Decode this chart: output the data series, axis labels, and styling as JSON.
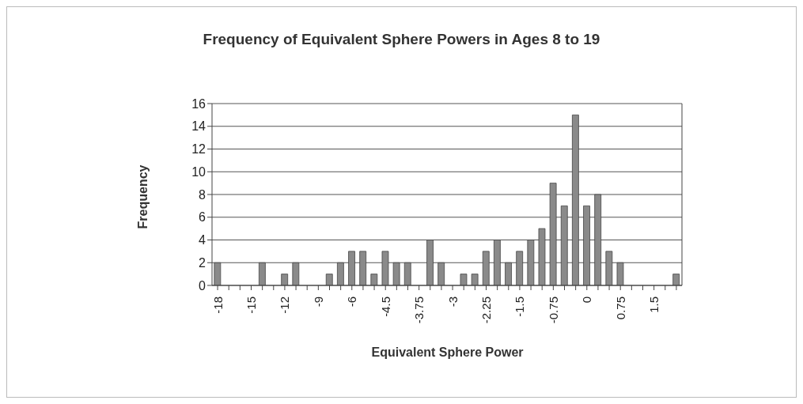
{
  "chart_data": {
    "type": "bar",
    "title": "Frequency of Equivalent Sphere Powers in Ages 8 to 19",
    "xlabel": "Equivalent Sphere Power",
    "ylabel": "Frequency",
    "categories": [
      "-18",
      null,
      null,
      "-15",
      null,
      null,
      "-12",
      null,
      null,
      "-9",
      null,
      null,
      "-6",
      null,
      null,
      "-4.5",
      null,
      null,
      "-3.75",
      null,
      null,
      "-3",
      null,
      null,
      "-2.25",
      null,
      null,
      "-1.5",
      null,
      null,
      "-0.75",
      null,
      null,
      "0",
      null,
      null,
      "0.75",
      null,
      null,
      "1.5",
      null,
      null
    ],
    "values": [
      2,
      0,
      0,
      0,
      2,
      0,
      1,
      2,
      0,
      0,
      1,
      2,
      3,
      3,
      1,
      3,
      2,
      2,
      0,
      4,
      2,
      0,
      1,
      1,
      3,
      4,
      2,
      3,
      4,
      5,
      9,
      7,
      15,
      7,
      8,
      3,
      2,
      0,
      0,
      0,
      0,
      1
    ],
    "color": "#8a8a8a",
    "ylim": [
      0,
      16
    ],
    "yticks": [
      0,
      2,
      4,
      6,
      8,
      10,
      12,
      14,
      16
    ],
    "grid": "y"
  }
}
